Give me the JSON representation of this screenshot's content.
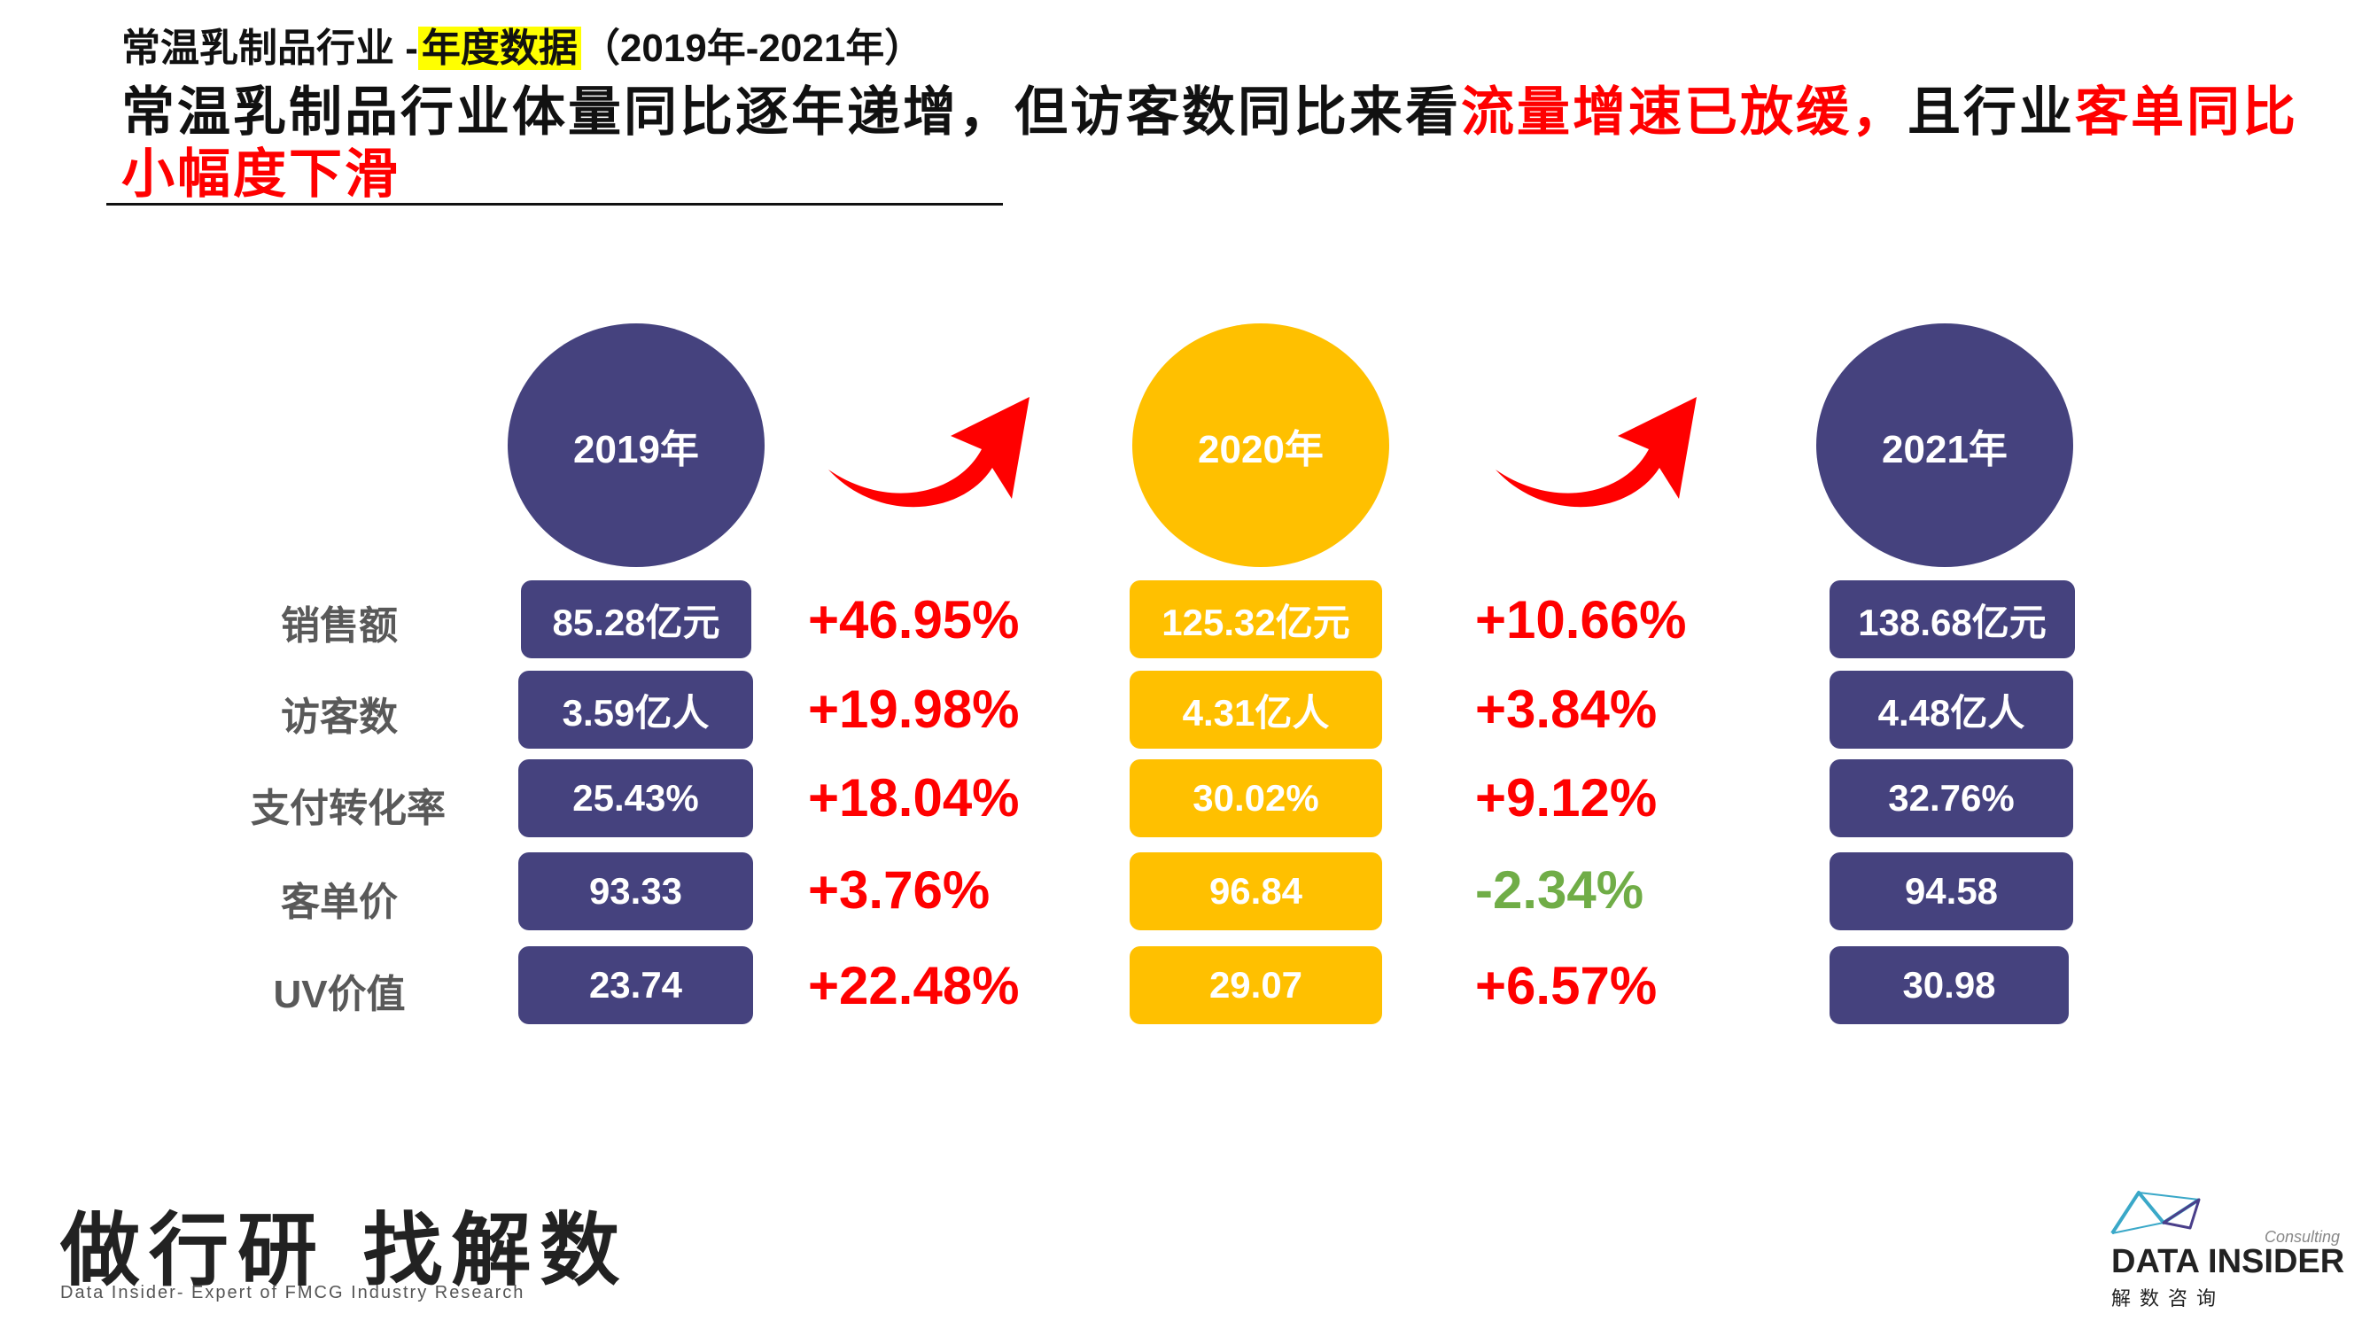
{
  "header": {
    "subtitle_prefix": "常温乳制品行业 -",
    "subtitle_highlight": "年度数据",
    "subtitle_suffix": "（2019年-2021年）",
    "headline_part1": "常温乳制品行业体量同比逐年递增，但访客数同比来看",
    "headline_red1": "流量增速已放缓，",
    "headline_part2": "且行业",
    "headline_red2": "客单同比小幅度下滑"
  },
  "years": [
    "2019年",
    "2020年",
    "2021年"
  ],
  "rows": [
    {
      "label": "销售额",
      "values": [
        "85.28亿元",
        "125.32亿元",
        "138.68亿元"
      ],
      "growth": [
        "+46.95%",
        "+10.66%"
      ]
    },
    {
      "label": "访客数",
      "values": [
        "3.59亿人",
        "4.31亿人",
        "4.48亿人"
      ],
      "growth": [
        "+19.98%",
        "+3.84%"
      ]
    },
    {
      "label": "支付转化率",
      "values": [
        "25.43%",
        "30.02%",
        "32.76%"
      ],
      "growth": [
        "+18.04%",
        "+9.12%"
      ]
    },
    {
      "label": "客单价",
      "values": [
        "93.33",
        "96.84",
        "94.58"
      ],
      "growth": [
        "+3.76%",
        "-2.34%"
      ]
    },
    {
      "label": "UV价值",
      "values": [
        "23.74",
        "29.07",
        "30.98"
      ],
      "growth": [
        "+22.48%",
        "+6.57%"
      ]
    }
  ],
  "colors": {
    "navy": "#45427e",
    "gold": "#ffc000",
    "positive": "#ff0000",
    "negative": "#70ad47",
    "arrow": "#ff0000"
  },
  "footer": {
    "slogan": "做行研 找解数",
    "slogan_sub": "Data Insider- Expert of FMCG Industry Research",
    "brand_consulting": "Consulting",
    "brand_name": "DATA INSIDER",
    "brand_cn": "解数咨询"
  }
}
